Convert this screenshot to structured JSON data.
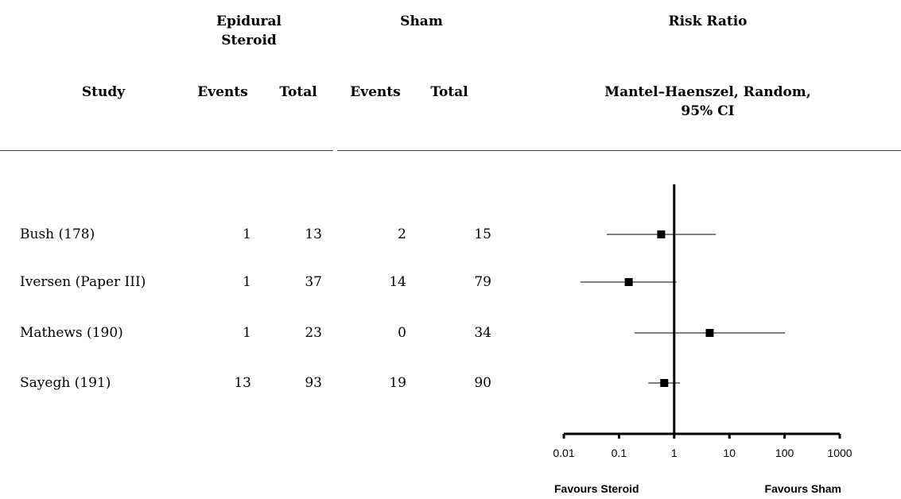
{
  "headers": {
    "group1": "Epidural Steroid",
    "group2": "Sham",
    "effect": "Risk Ratio",
    "study": "Study",
    "events1": "Events",
    "total1": "Total",
    "events2": "Events",
    "total2": "Total",
    "method": "Mantel–Haenszel, Random, 95% CI"
  },
  "studies": [
    {
      "name": "Bush (178)",
      "events1": "1",
      "total1": "13",
      "events2": "2",
      "total2": "15"
    },
    {
      "name": "Iversen (Paper III)",
      "events1": "1",
      "total1": "37",
      "events2": "14",
      "total2": "79"
    },
    {
      "name": "Mathews (190)",
      "events1": "1",
      "total1": "23",
      "events2": "0",
      "total2": "34"
    },
    {
      "name": "Sayegh (191)",
      "events1": "13",
      "total1": "93",
      "events2": "19",
      "total2": "90"
    }
  ],
  "chart_data": {
    "type": "scatter",
    "xscale": "log",
    "xlim": [
      0.01,
      1000
    ],
    "reference_line": 1,
    "x_ticks": [
      "0.01",
      "0.1",
      "1",
      "10",
      "100",
      "1000"
    ],
    "x_tick_values": [
      0.01,
      0.1,
      1,
      10,
      100,
      1000
    ],
    "left_label": "Favours Steroid",
    "right_label": "Favours Sham",
    "points": [
      {
        "study": "Bush (178)",
        "rr": 0.58,
        "ci_low": 0.06,
        "ci_high": 5.7
      },
      {
        "study": "Iversen (Paper III)",
        "rr": 0.15,
        "ci_low": 0.02,
        "ci_high": 1.1
      },
      {
        "study": "Mathews (190)",
        "rr": 4.4,
        "ci_low": 0.19,
        "ci_high": 102
      },
      {
        "study": "Sayegh (191)",
        "rr": 0.66,
        "ci_low": 0.34,
        "ci_high": 1.28
      }
    ],
    "grid": false
  }
}
